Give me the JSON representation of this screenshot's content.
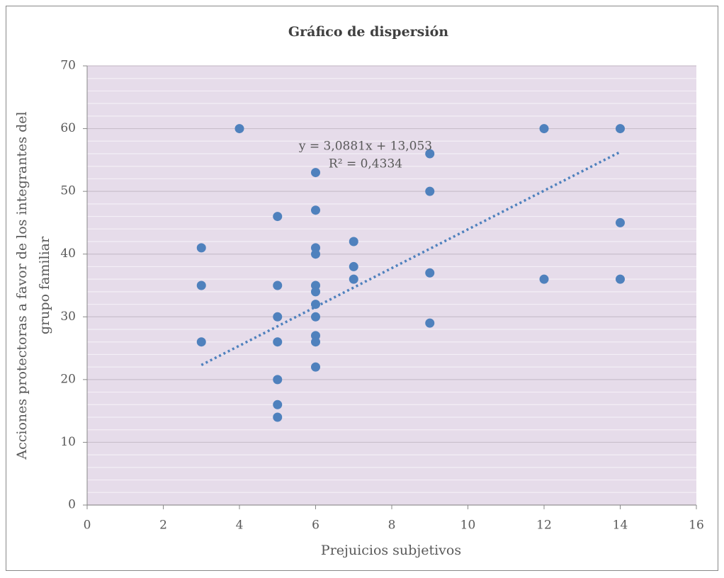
{
  "chart_data": {
    "type": "scatter",
    "title": "Gráfico de dispersión",
    "xlabel": "Prejuicios subjetivos",
    "ylabel": [
      "Acciones protectoras a favor de los integrantes del",
      "grupo familiar"
    ],
    "x": [
      3,
      3,
      3,
      4,
      5,
      5,
      5,
      5,
      5,
      5,
      5,
      6,
      6,
      6,
      6,
      6,
      6,
      6,
      6,
      6,
      6,
      6,
      7,
      7,
      7,
      9,
      9,
      9,
      9,
      12,
      12,
      14,
      14,
      14
    ],
    "y": [
      41,
      35,
      26,
      60,
      46,
      35,
      30,
      26,
      20,
      16,
      14,
      53,
      47,
      41,
      40,
      35,
      34,
      32,
      30,
      27,
      26,
      22,
      42,
      38,
      36,
      56,
      50,
      37,
      29,
      60,
      36,
      60,
      45,
      36
    ],
    "color": "#4f81bd",
    "trendline": {
      "slope": 3.0881,
      "intercept": 13.053,
      "color": "#4f81bd"
    },
    "annotations": [
      "y = 3,0881x  + 13,053",
      "R² = 0,4334"
    ],
    "xlim": [
      0,
      16
    ],
    "xticks": [
      0,
      2,
      4,
      6,
      8,
      10,
      12,
      14,
      16
    ],
    "ylim": [
      0,
      70
    ],
    "yticks": [
      0,
      10,
      20,
      30,
      40,
      50,
      60,
      70
    ],
    "grid": true,
    "background": "#e6dcea"
  }
}
